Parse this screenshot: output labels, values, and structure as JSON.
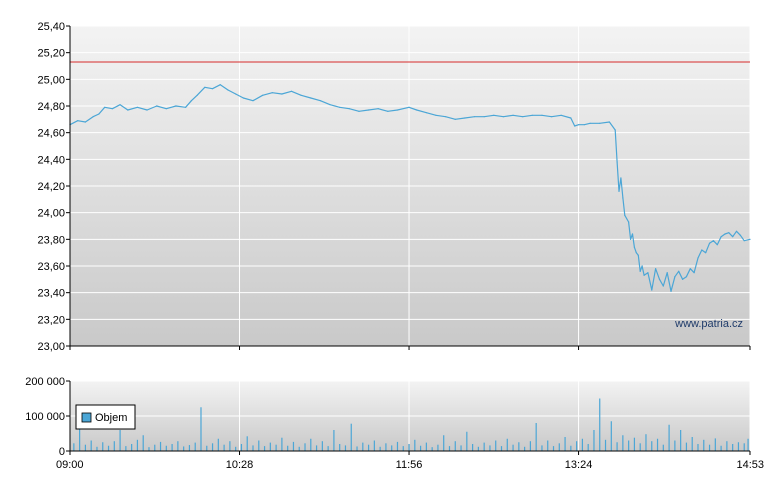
{
  "watermark": "www.patria.cz",
  "colors": {
    "price_line": "#4ba6d6",
    "reference_line": "#d62b2b",
    "volume_bar": "#4ba6d6",
    "grid": "#ffffff",
    "plot_bg_top": "#f3f3f3",
    "plot_bg_bottom": "#c9c9c9"
  },
  "chart_data": [
    {
      "type": "line",
      "title": "",
      "xlabel": "",
      "ylabel": "",
      "xlim": [
        "09:00",
        "14:53"
      ],
      "ylim": [
        23.0,
        25.4
      ],
      "y_ticks": [
        "23,00",
        "23,20",
        "23,40",
        "23,60",
        "23,80",
        "24,00",
        "24,20",
        "24,40",
        "24,60",
        "24,80",
        "25,00",
        "25,20",
        "25,40"
      ],
      "x_ticks": [
        "09:00",
        "10:28",
        "11:56",
        "13:24",
        "14:53"
      ],
      "reference_line": 25.13,
      "grid": true,
      "series": [
        {
          "x": [
            "09:00",
            "09:04",
            "09:08",
            "09:12",
            "09:15",
            "09:18",
            "09:22",
            "09:26",
            "09:30",
            "09:35",
            "09:40",
            "09:45",
            "09:50",
            "09:55",
            "10:00",
            "10:03",
            "10:06",
            "10:10",
            "10:14",
            "10:18",
            "10:22",
            "10:26",
            "10:30",
            "10:35",
            "10:40",
            "10:45",
            "10:50",
            "10:55",
            "11:00",
            "11:05",
            "11:10",
            "11:15",
            "11:20",
            "11:25",
            "11:30",
            "11:35",
            "11:40",
            "11:45",
            "11:50",
            "11:56",
            "12:00",
            "12:05",
            "12:10",
            "12:15",
            "12:20",
            "12:25",
            "12:30",
            "12:35",
            "12:40",
            "12:45",
            "12:50",
            "12:55",
            "13:00",
            "13:05",
            "13:10",
            "13:15",
            "13:20",
            "13:22",
            "13:24",
            "13:27",
            "13:30",
            "13:35",
            "13:40",
            "13:43",
            "13:44",
            "13:45",
            "13:46",
            "13:47",
            "13:48",
            "13:50",
            "13:51",
            "13:52",
            "13:53",
            "13:54",
            "13:55",
            "13:56",
            "13:57",
            "13:58",
            "14:00",
            "14:02",
            "14:04",
            "14:06",
            "14:08",
            "14:10",
            "14:12",
            "14:14",
            "14:16",
            "14:18",
            "14:20",
            "14:22",
            "14:24",
            "14:26",
            "14:28",
            "14:30",
            "14:32",
            "14:34",
            "14:36",
            "14:38",
            "14:40",
            "14:42",
            "14:44",
            "14:46",
            "14:48",
            "14:50",
            "14:53"
          ],
          "values": [
            24.66,
            24.69,
            24.68,
            24.72,
            24.74,
            24.79,
            24.78,
            24.81,
            24.77,
            24.79,
            24.77,
            24.8,
            24.78,
            24.8,
            24.79,
            24.84,
            24.88,
            24.94,
            24.93,
            24.96,
            24.92,
            24.89,
            24.86,
            24.84,
            24.88,
            24.9,
            24.89,
            24.91,
            24.88,
            24.86,
            24.84,
            24.81,
            24.79,
            24.78,
            24.76,
            24.77,
            24.78,
            24.76,
            24.77,
            24.79,
            24.77,
            24.75,
            24.73,
            24.72,
            24.7,
            24.71,
            24.72,
            24.72,
            24.73,
            24.72,
            24.73,
            24.72,
            24.73,
            24.73,
            24.72,
            24.73,
            24.71,
            24.65,
            24.66,
            24.66,
            24.67,
            24.67,
            24.68,
            24.62,
            24.38,
            24.16,
            24.26,
            24.11,
            23.98,
            23.93,
            23.8,
            23.84,
            23.74,
            23.7,
            23.68,
            23.56,
            23.6,
            23.53,
            23.55,
            23.42,
            23.58,
            23.5,
            23.45,
            23.55,
            23.41,
            23.52,
            23.56,
            23.5,
            23.52,
            23.58,
            23.55,
            23.66,
            23.72,
            23.7,
            23.77,
            23.79,
            23.76,
            23.82,
            23.84,
            23.85,
            23.82,
            23.86,
            23.83,
            23.79,
            23.8
          ]
        }
      ]
    },
    {
      "type": "bar",
      "title": "",
      "xlabel": "",
      "ylabel": "",
      "xlim": [
        "09:00",
        "14:53"
      ],
      "ylim": [
        0,
        200000
      ],
      "y_ticks": [
        "0",
        "100 000",
        "200 000"
      ],
      "x_ticks": [
        "09:00",
        "10:28",
        "11:56",
        "13:24",
        "14:53"
      ],
      "grid": true,
      "legend": {
        "placement": "left",
        "entries": [
          "Objem"
        ]
      },
      "series": [
        {
          "name": "Objem",
          "x": [
            "09:02",
            "09:05",
            "09:08",
            "09:11",
            "09:14",
            "09:17",
            "09:20",
            "09:23",
            "09:26",
            "09:29",
            "09:32",
            "09:35",
            "09:38",
            "09:41",
            "09:44",
            "09:47",
            "09:50",
            "09:53",
            "09:56",
            "09:59",
            "10:02",
            "10:05",
            "10:08",
            "10:11",
            "10:14",
            "10:17",
            "10:20",
            "10:23",
            "10:26",
            "10:29",
            "10:32",
            "10:35",
            "10:38",
            "10:41",
            "10:44",
            "10:47",
            "10:50",
            "10:53",
            "10:56",
            "10:59",
            "11:02",
            "11:05",
            "11:08",
            "11:11",
            "11:14",
            "11:17",
            "11:20",
            "11:23",
            "11:26",
            "11:29",
            "11:32",
            "11:35",
            "11:38",
            "11:41",
            "11:44",
            "11:47",
            "11:50",
            "11:53",
            "11:56",
            "11:59",
            "12:02",
            "12:05",
            "12:08",
            "12:11",
            "12:14",
            "12:17",
            "12:20",
            "12:23",
            "12:26",
            "12:29",
            "12:32",
            "12:35",
            "12:38",
            "12:41",
            "12:44",
            "12:47",
            "12:50",
            "12:53",
            "12:56",
            "12:59",
            "13:02",
            "13:05",
            "13:08",
            "13:11",
            "13:14",
            "13:17",
            "13:20",
            "13:23",
            "13:26",
            "13:29",
            "13:32",
            "13:35",
            "13:38",
            "13:41",
            "13:44",
            "13:47",
            "13:50",
            "13:53",
            "13:56",
            "13:59",
            "14:02",
            "14:05",
            "14:08",
            "14:11",
            "14:14",
            "14:17",
            "14:20",
            "14:23",
            "14:26",
            "14:29",
            "14:32",
            "14:35",
            "14:38",
            "14:41",
            "14:44",
            "14:47",
            "14:50",
            "14:52"
          ],
          "values": [
            22000,
            70000,
            18000,
            30000,
            12000,
            25000,
            15000,
            28000,
            60000,
            14000,
            20000,
            32000,
            45000,
            11000,
            18000,
            26000,
            15000,
            20000,
            28000,
            13000,
            17000,
            24000,
            125000,
            15000,
            22000,
            35000,
            18000,
            28000,
            12000,
            20000,
            42000,
            16000,
            30000,
            14000,
            24000,
            18000,
            38000,
            15000,
            26000,
            12000,
            22000,
            35000,
            16000,
            28000,
            14000,
            60000,
            20000,
            16000,
            78000,
            13000,
            24000,
            18000,
            30000,
            12000,
            22000,
            16000,
            26000,
            14000,
            20000,
            32000,
            15000,
            24000,
            11000,
            18000,
            45000,
            14000,
            28000,
            16000,
            55000,
            20000,
            12000,
            24000,
            16000,
            30000,
            14000,
            35000,
            18000,
            25000,
            12000,
            28000,
            80000,
            16000,
            30000,
            14000,
            22000,
            40000,
            15000,
            28000,
            35000,
            20000,
            60000,
            150000,
            32000,
            85000,
            25000,
            45000,
            30000,
            38000,
            22000,
            48000,
            28000,
            35000,
            18000,
            75000,
            30000,
            60000,
            24000,
            40000,
            20000,
            32000,
            18000,
            36000,
            15000,
            28000,
            20000,
            25000,
            22000,
            35000
          ]
        }
      ]
    }
  ]
}
